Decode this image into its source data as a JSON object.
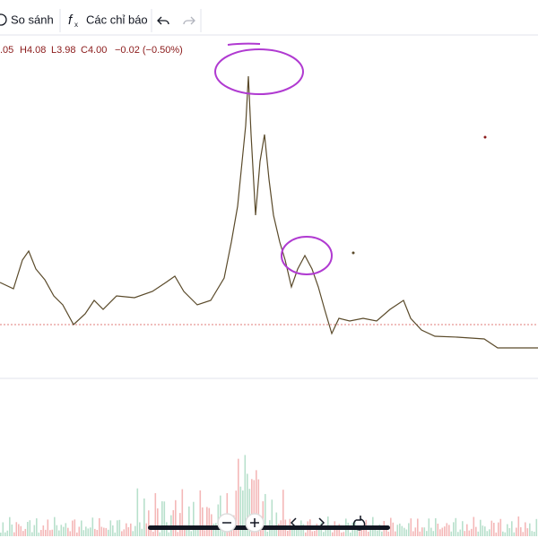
{
  "toolbar": {
    "compare": "So sánh",
    "indicators": "Các chỉ báo"
  },
  "legend": {
    "open": ".05",
    "high": "H4.08",
    "low": "L3.98",
    "close": "C4.00",
    "change": "−0.02 (−0.50%)"
  }
}
